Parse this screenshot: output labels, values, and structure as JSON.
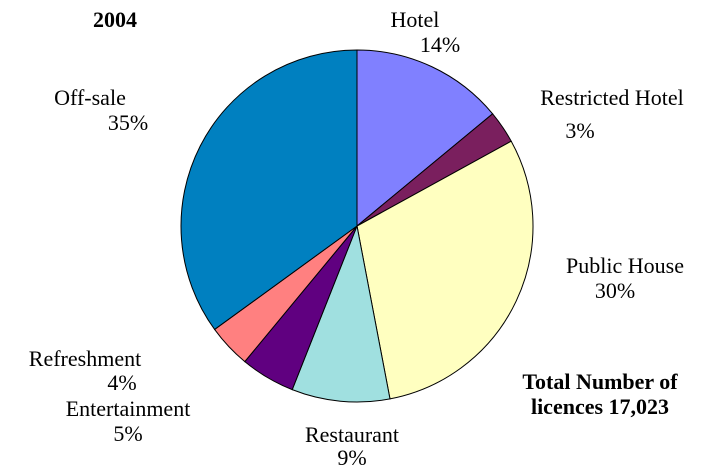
{
  "chart_data": {
    "type": "pie",
    "title": "2004",
    "categories": [
      "Hotel",
      "Restricted Hotel",
      "Public House",
      "Restaurant",
      "Entertainment",
      "Refreshment",
      "Off-sale"
    ],
    "values": [
      14,
      3,
      30,
      9,
      5,
      4,
      35
    ],
    "value_labels": [
      "14%",
      "3%",
      "30%",
      "9%",
      "5%",
      "4%",
      "35%"
    ],
    "colors": [
      "#8080ff",
      "#7a1f5e",
      "#ffffc0",
      "#a0e0e0",
      "#600080",
      "#ff8080",
      "#0080c0"
    ],
    "annotation": [
      "Total Number of",
      "licences 17,023"
    ]
  }
}
